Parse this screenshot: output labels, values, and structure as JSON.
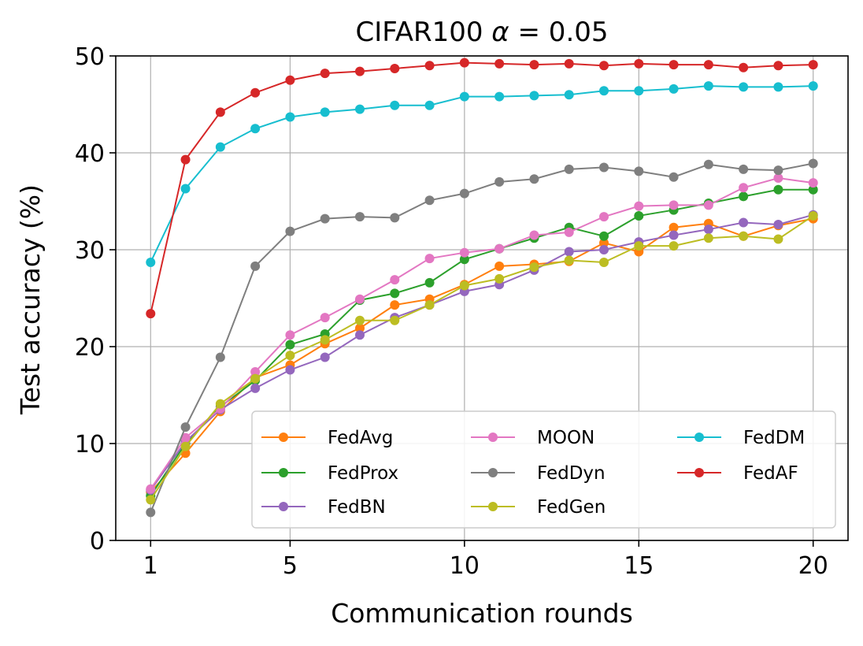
{
  "chart_data": {
    "type": "line",
    "title": "CIFAR100 α = 0.05",
    "title_prefix": "CIFAR100 ",
    "title_symbol": "α",
    "title_suffix": " = 0.05",
    "xlabel": "Communication rounds",
    "ylabel": "Test accuracy (%)",
    "xlim": [
      0,
      21
    ],
    "ylim": [
      0,
      50
    ],
    "xticks": [
      1,
      5,
      10,
      15,
      20
    ],
    "yticks": [
      0,
      10,
      20,
      30,
      40,
      50
    ],
    "grid": true,
    "legend_position": "lower-right",
    "legend_columns": 3,
    "x": [
      1,
      2,
      3,
      4,
      5,
      6,
      7,
      8,
      9,
      10,
      11,
      12,
      13,
      14,
      15,
      16,
      17,
      18,
      19,
      20
    ],
    "series": [
      {
        "name": "FedAvg",
        "color": "#ff7f0e",
        "values": [
          5.0,
          9.0,
          13.3,
          16.8,
          18.1,
          20.3,
          21.9,
          24.3,
          24.9,
          26.4,
          28.3,
          28.5,
          28.8,
          30.7,
          29.8,
          32.3,
          32.7,
          31.4,
          32.5,
          33.2
        ]
      },
      {
        "name": "FedProx",
        "color": "#2ca02c",
        "values": [
          4.6,
          10.0,
          13.8,
          16.5,
          20.2,
          21.3,
          24.8,
          25.5,
          26.6,
          29.0,
          30.1,
          31.2,
          32.3,
          31.4,
          33.5,
          34.1,
          34.8,
          35.5,
          36.2,
          36.2
        ]
      },
      {
        "name": "FedBN",
        "color": "#9467bd",
        "values": [
          5.2,
          10.2,
          13.5,
          15.7,
          17.6,
          18.9,
          21.2,
          23.0,
          24.3,
          25.7,
          26.4,
          27.9,
          29.8,
          30.0,
          30.8,
          31.5,
          32.1,
          32.8,
          32.6,
          33.6
        ]
      },
      {
        "name": "MOON",
        "color": "#e377c2",
        "values": [
          5.3,
          10.6,
          13.6,
          17.4,
          21.2,
          23.0,
          24.9,
          26.9,
          29.1,
          29.7,
          30.1,
          31.5,
          31.8,
          33.4,
          34.5,
          34.6,
          34.6,
          36.4,
          37.4,
          36.9
        ]
      },
      {
        "name": "FedDyn",
        "color": "#7f7f7f",
        "values": [
          2.9,
          11.7,
          18.9,
          28.3,
          31.9,
          33.2,
          33.4,
          33.3,
          35.1,
          35.8,
          37.0,
          37.3,
          38.3,
          38.5,
          38.1,
          37.5,
          38.8,
          38.3,
          38.2,
          38.9
        ]
      },
      {
        "name": "FedGen",
        "color": "#bcbd22",
        "values": [
          4.2,
          9.7,
          14.1,
          16.7,
          19.1,
          20.7,
          22.7,
          22.7,
          24.3,
          26.3,
          27.0,
          28.2,
          28.9,
          28.7,
          30.4,
          30.4,
          31.2,
          31.4,
          31.1,
          33.5
        ]
      },
      {
        "name": "FedDM",
        "color": "#17becf",
        "values": [
          28.7,
          36.3,
          40.6,
          42.5,
          43.7,
          44.2,
          44.5,
          44.9,
          44.9,
          45.8,
          45.8,
          45.9,
          46.0,
          46.4,
          46.4,
          46.6,
          46.9,
          46.8,
          46.8,
          46.9
        ]
      },
      {
        "name": "FedAF",
        "color": "#d62728",
        "values": [
          23.4,
          39.3,
          44.2,
          46.2,
          47.5,
          48.2,
          48.4,
          48.7,
          49.0,
          49.3,
          49.2,
          49.1,
          49.2,
          49.0,
          49.2,
          49.1,
          49.1,
          48.8,
          49.0,
          49.1
        ]
      }
    ]
  }
}
